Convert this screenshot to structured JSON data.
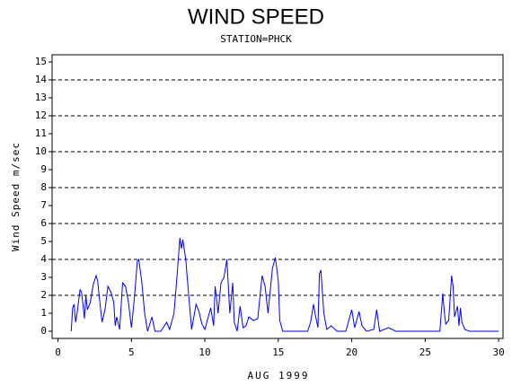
{
  "chart_data": {
    "type": "line",
    "title": "WIND SPEED",
    "subtitle": "STATION=PHCK",
    "y_label": "Wind Speed m/sec",
    "x_label": "AUG 1999",
    "xlim": [
      -0.4,
      30.3
    ],
    "ylim": [
      -0.4,
      15.4
    ],
    "xticks": [
      0,
      5,
      10,
      15,
      20,
      25,
      30
    ],
    "yticks": [
      0,
      1,
      2,
      3,
      4,
      5,
      6,
      7,
      8,
      9,
      10,
      11,
      12,
      13,
      14,
      15
    ],
    "grid_y": [
      2,
      4,
      6,
      8,
      10,
      12,
      14
    ],
    "series": [
      {
        "color": "#0000ff",
        "x": [
          0.9,
          1.0,
          1.1,
          1.2,
          1.3,
          1.5,
          1.6,
          1.7,
          1.8,
          1.9,
          2.0,
          2.2,
          2.4,
          2.6,
          2.7,
          2.8,
          3.0,
          3.2,
          3.4,
          3.6,
          3.8,
          3.9,
          4.0,
          4.2,
          4.4,
          4.6,
          4.8,
          5.0,
          5.2,
          5.4,
          5.5,
          5.7,
          5.9,
          6.1,
          6.4,
          6.6,
          7.0,
          7.4,
          7.6,
          7.9,
          8.1,
          8.3,
          8.4,
          8.5,
          8.7,
          8.9,
          9.1,
          9.4,
          9.6,
          9.8,
          10.0,
          10.4,
          10.6,
          10.7,
          10.8,
          10.9,
          11.1,
          11.3,
          11.5,
          11.7,
          11.9,
          12.0,
          12.2,
          12.4,
          12.6,
          12.8,
          13.0,
          13.3,
          13.6,
          13.9,
          14.1,
          14.3,
          14.6,
          14.8,
          15.0,
          15.1,
          15.3,
          16.0,
          17.0,
          17.2,
          17.4,
          17.5,
          17.7,
          17.8,
          17.9,
          18.1,
          18.3,
          18.6,
          19.0,
          19.6,
          20.0,
          20.2,
          20.5,
          20.7,
          21.0,
          21.5,
          21.7,
          21.9,
          22.5,
          23.0,
          26.0,
          26.2,
          26.3,
          26.4,
          26.6,
          26.8,
          26.9,
          27.0,
          27.2,
          27.3,
          27.4,
          27.5,
          27.7,
          28.0,
          30.0
        ],
        "values": [
          0,
          1.3,
          1.5,
          0.5,
          1.0,
          2.3,
          2.2,
          1.5,
          0.7,
          2.0,
          1.2,
          1.6,
          2.6,
          3.1,
          2.8,
          2.0,
          0.5,
          1.2,
          2.5,
          2.2,
          1.6,
          0.3,
          0.8,
          0.1,
          2.7,
          2.5,
          1.6,
          0.2,
          1.8,
          3.9,
          4.0,
          2.8,
          1.0,
          0,
          0.8,
          0,
          0,
          0.5,
          0.1,
          1.0,
          3.0,
          5.2,
          4.6,
          5.1,
          4.0,
          2.0,
          0.1,
          1.5,
          1.1,
          0.4,
          0.1,
          1.3,
          0.3,
          2.5,
          1.8,
          1.0,
          2.7,
          3.0,
          4.0,
          1.0,
          2.7,
          0.5,
          0,
          1.4,
          0.2,
          0.3,
          0.8,
          0.6,
          0.7,
          3.1,
          2.5,
          1.0,
          3.5,
          4.1,
          2.8,
          0.6,
          0,
          0,
          0,
          0.5,
          1.5,
          1.0,
          0.2,
          3.2,
          3.4,
          1.0,
          0.1,
          0.3,
          0,
          0,
          1.2,
          0.2,
          1.1,
          0.3,
          0,
          0.1,
          1.2,
          0,
          0.2,
          0,
          0,
          2.1,
          1.1,
          0.4,
          0.6,
          3.1,
          2.5,
          0.8,
          1.4,
          0.3,
          1.3,
          0.5,
          0.1,
          0,
          0
        ]
      }
    ]
  }
}
